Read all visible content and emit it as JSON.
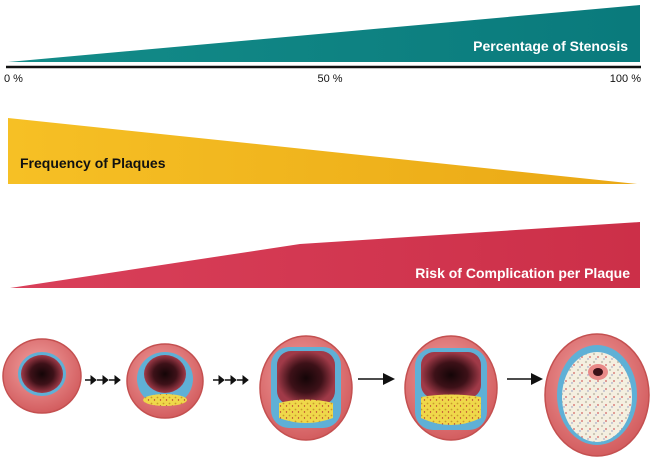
{
  "axis": {
    "tick_start": "0 %",
    "tick_mid": "50 %",
    "tick_end": "100 %"
  },
  "bars": {
    "stenosis": {
      "label": "Percentage of Stenosis",
      "color": "#0e7f7f",
      "label_color": "#ffffff",
      "trend": "increasing"
    },
    "plaques": {
      "label": "Frequency of Plaques",
      "color": "#f1b51c",
      "label_color": "#111111",
      "trend": "decreasing"
    },
    "risk": {
      "label": "Risk of Complication per Plaque",
      "color": "#d43a52",
      "label_color": "#ffffff",
      "trend": "increasing"
    }
  },
  "stages": [
    {
      "name": "normal vessel",
      "stenosis_level": 0
    },
    {
      "name": "early plaque",
      "stenosis_level": 0.1
    },
    {
      "name": "moderate plaque",
      "stenosis_level": 0.35
    },
    {
      "name": "advanced plaque",
      "stenosis_level": 0.55
    },
    {
      "name": "severe stenosis",
      "stenosis_level": 0.95
    }
  ],
  "arrows": [
    "dotted-triple",
    "dotted-triple",
    "solid",
    "solid"
  ],
  "colors": {
    "vessel_wall": "#e98a88",
    "vessel_wall_dark": "#c8504f",
    "intima": "#5fb0d6",
    "plaque": "#efd84a",
    "lumen": "#2a0e12",
    "axis_line": "#111111"
  }
}
